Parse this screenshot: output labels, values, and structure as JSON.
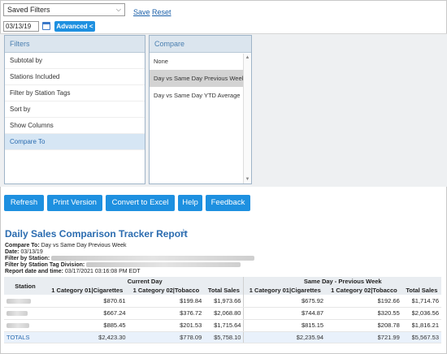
{
  "toolbar": {
    "saved_filters_value": "Saved Filters",
    "save_label": "Save",
    "reset_label": "Reset",
    "date_value": "03/13/19",
    "advanced_label": "Advanced <"
  },
  "filters_panel": {
    "title": "Filters",
    "items": [
      "Subtotal by",
      "Stations Included",
      "Filter by Station Tags",
      "Sort by",
      "Show Columns",
      "Compare To"
    ],
    "active_item": "Compare To"
  },
  "compare_panel": {
    "title": "Compare",
    "items": [
      "None",
      "Day vs Same Day Previous Week",
      "Day vs Same Day YTD Average"
    ],
    "selected_item": "Day vs Same Day Previous Week"
  },
  "actions": {
    "refresh": "Refresh",
    "print_version": "Print Version",
    "convert_to_excel": "Convert to Excel",
    "help": "Help",
    "feedback": "Feedback"
  },
  "report": {
    "title": "Daily Sales Comparison Tracker Report",
    "compare_to_label": "Compare To:",
    "compare_to_value": "Day vs Same Day Previous Week",
    "date_label": "Date:",
    "date_value": "03/13/19",
    "filter_station_label": "Filter by Station:",
    "filter_tag_label": "Filter by Station Tag Division:",
    "report_datetime_label": "Report date and time:",
    "report_datetime_value": "03/17/2021 03:16:08 PM EDT"
  },
  "table": {
    "station_header": "Station",
    "group_current": "Current Day",
    "group_previous": "Same Day - Previous Week",
    "col_cat1": "1 Category 01|Cigarettes",
    "col_cat2": "1 Category 02|Tobacco",
    "col_total": "Total Sales",
    "rows": [
      {
        "c1": "$870.61",
        "c2": "$199.84",
        "t": "$1,973.66",
        "p1": "$675.92",
        "p2": "$192.66",
        "pt": "$1,714.76"
      },
      {
        "c1": "$667.24",
        "c2": "$376.72",
        "t": "$2,068.80",
        "p1": "$744.87",
        "p2": "$320.55",
        "pt": "$2,036.56"
      },
      {
        "c1": "$885.45",
        "c2": "$201.53",
        "t": "$1,715.64",
        "p1": "$815.15",
        "p2": "$208.78",
        "pt": "$1,816.21"
      }
    ],
    "totals": {
      "label": "TOTALS",
      "c1": "$2,423.30",
      "c2": "$778.09",
      "t": "$5,758.10",
      "p1": "$2,235.94",
      "p2": "$721.99",
      "pt": "$5,567.53"
    }
  },
  "colors": {
    "accent": "#1e90e0",
    "link": "#2b6cb0",
    "panel_header": "#dbe5ee"
  }
}
